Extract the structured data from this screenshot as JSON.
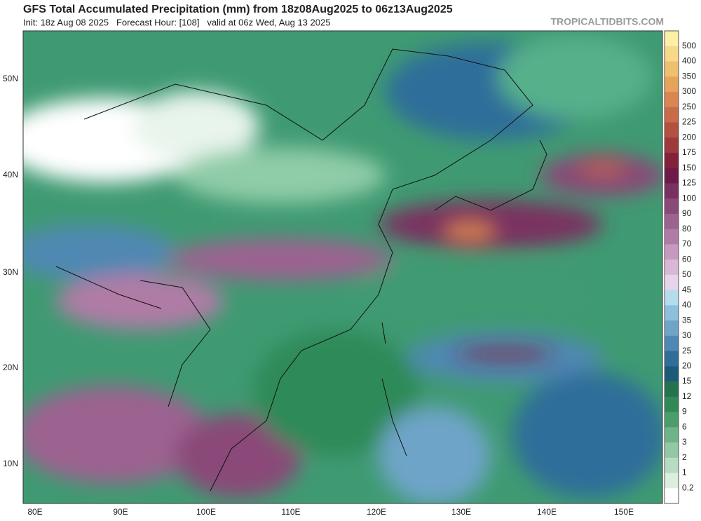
{
  "header": {
    "title": "GFS Total Accumulated Precipitation (mm) from 18z08Aug2025 to 06z13Aug2025",
    "subtitle": "Init: 18z Aug 08 2025   Forecast Hour: [108]   valid at 06z Wed, Aug 13 2025",
    "source": "TROPICALTIDBITS.COM"
  },
  "map": {
    "lat_labels": [
      "50N",
      "40N",
      "30N",
      "20N",
      "10N"
    ],
    "lon_labels": [
      "80E",
      "90E",
      "100E",
      "110E",
      "120E",
      "130E",
      "140E",
      "150E"
    ]
  },
  "colorbar": {
    "labels": [
      "500",
      "400",
      "350",
      "300",
      "250",
      "225",
      "200",
      "175",
      "150",
      "125",
      "100",
      "90",
      "80",
      "70",
      "60",
      "50",
      "45",
      "40",
      "35",
      "30",
      "25",
      "20",
      "15",
      "12",
      "9",
      "6",
      "3",
      "2",
      "1",
      "0.2"
    ],
    "colors": [
      "#fcefa6",
      "#f7d98a",
      "#efc070",
      "#e6a35a",
      "#d98650",
      "#c86b48",
      "#b45040",
      "#9c3a3c",
      "#83203a",
      "#6e1a48",
      "#7a3060",
      "#8a4a78",
      "#9c6290",
      "#b07ca6",
      "#c69ac0",
      "#d9b8d6",
      "#e8d4e8",
      "#b4dcec",
      "#8cc0dc",
      "#6ea4c8",
      "#4f88b2",
      "#2f6e9a",
      "#1c5a78",
      "#23734e",
      "#2f8a58",
      "#4a9e6c",
      "#6fb488",
      "#92c8a4",
      "#b8dcc2",
      "#dbeee0",
      "#ffffff"
    ]
  }
}
